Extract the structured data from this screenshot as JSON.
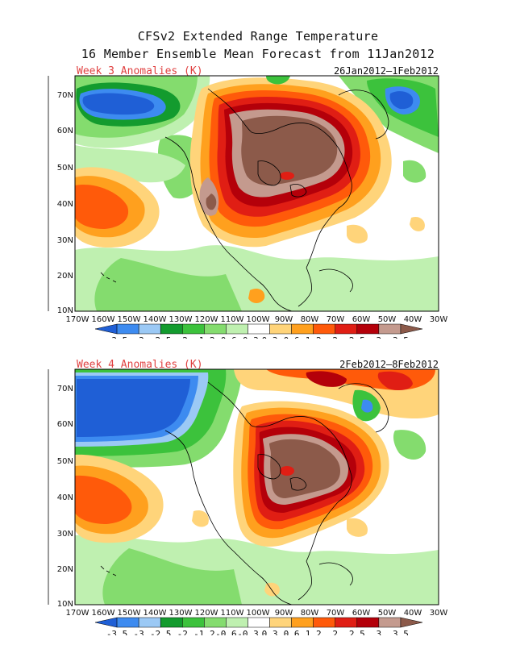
{
  "header": {
    "title": "CFSv2 Extended Range Temperature",
    "subtitle": "16 Member Ensemble Mean Forecast from 11Jan2012"
  },
  "panels": [
    {
      "label": "Week 3 Anomalies (K)",
      "dates": "26Jan2012–1Feb2012",
      "lat_ticks": [
        "70N",
        "60N",
        "50N",
        "40N",
        "30N",
        "20N",
        "10N"
      ],
      "lon_ticks": [
        "170W",
        "160W",
        "150W",
        "140W",
        "130W",
        "120W",
        "110W",
        "100W",
        "90W",
        "80W",
        "70W",
        "60W",
        "50W",
        "40W",
        "30W"
      ]
    },
    {
      "label": "Week 4 Anomalies (K)",
      "dates": "2Feb2012–8Feb2012",
      "lat_ticks": [
        "70N",
        "60N",
        "50N",
        "40N",
        "30N",
        "20N",
        "10N"
      ],
      "lon_ticks": [
        "170W",
        "160W",
        "150W",
        "140W",
        "130W",
        "120W",
        "110W",
        "100W",
        "90W",
        "80W",
        "70W",
        "60W",
        "50W",
        "40W",
        "30W"
      ]
    }
  ],
  "colorbar": {
    "levels": [
      "-3.5",
      "-3",
      "-2.5",
      "-2",
      "-1.2",
      "-0.6",
      "-0.3",
      "0.3",
      "0.6",
      "1.2",
      "2",
      "2.5",
      "3",
      "3.5"
    ],
    "colors": [
      "#1f5fd6",
      "#3d8bf0",
      "#9bc9f5",
      "#139b2e",
      "#3cc23c",
      "#84dc6e",
      "#bff0b0",
      "#ffffff",
      "#ffd47a",
      "#ffa01e",
      "#ff5a0a",
      "#e01e14",
      "#b4000a",
      "#c49a8e",
      "#8c5a4a"
    ]
  },
  "colors": {
    "panel_label": "#e04040",
    "coast": "#000000"
  }
}
